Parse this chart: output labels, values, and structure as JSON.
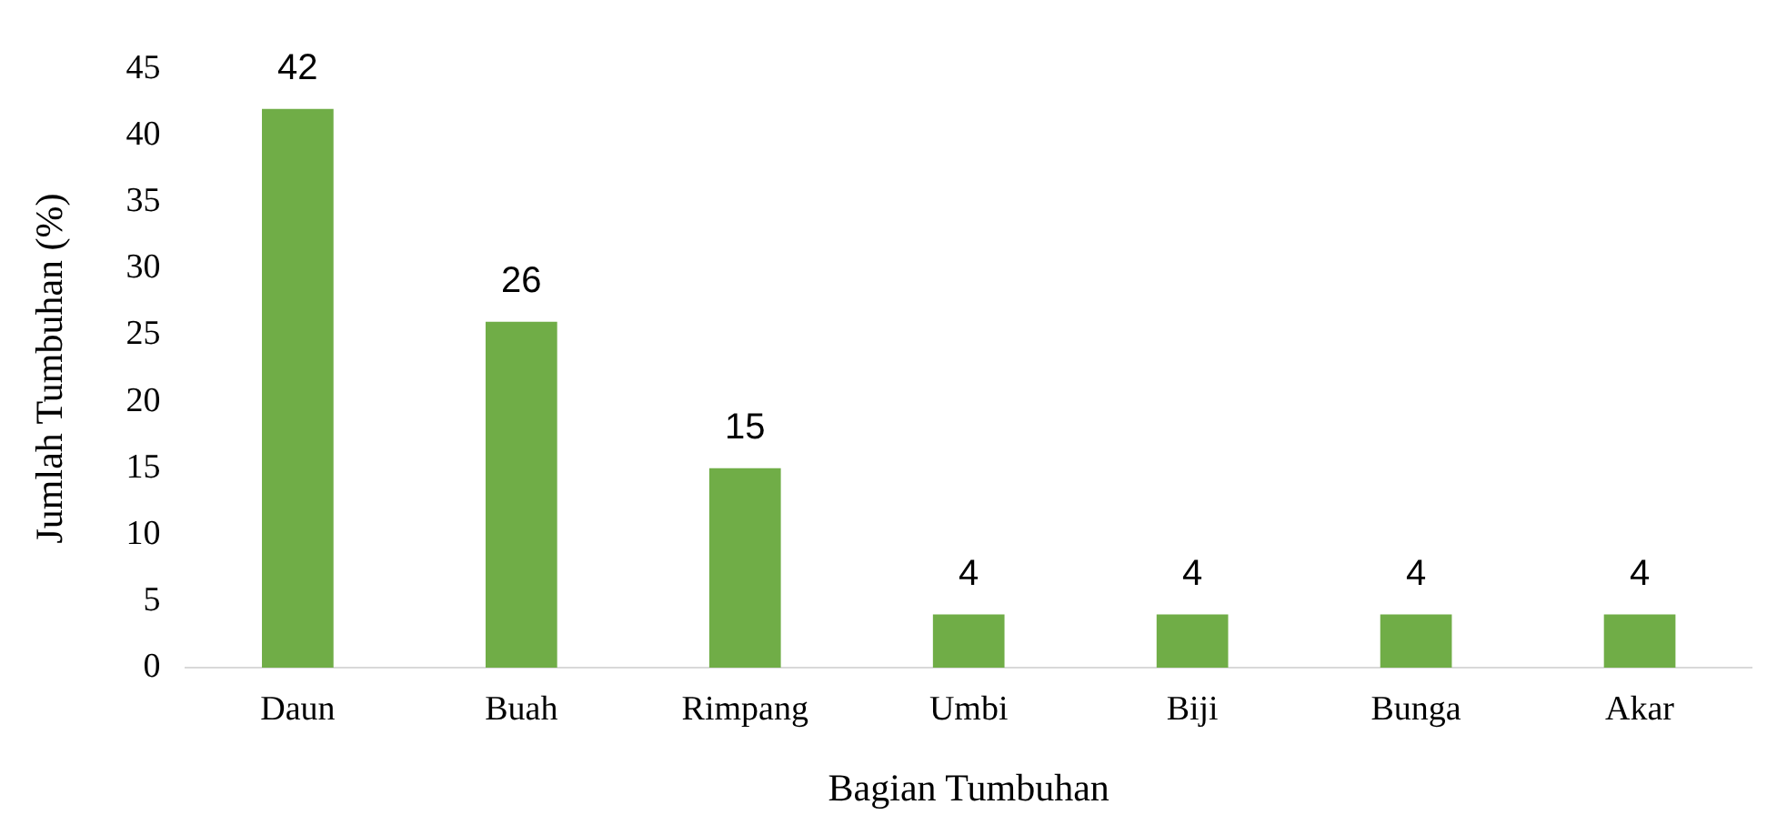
{
  "chart_data": {
    "type": "bar",
    "xlabel": "Bagian Tumbuhan",
    "ylabel": "Jumlah Tumbuhan (%)",
    "categories": [
      "Daun",
      "Buah",
      "Rimpang",
      "Umbi",
      "Biji",
      "Bunga",
      "Akar"
    ],
    "values": [
      42,
      26,
      15,
      4,
      4,
      4,
      4
    ],
    "color": "#70ad47",
    "ylim": [
      0,
      45
    ],
    "yticks": [
      0,
      5,
      10,
      15,
      20,
      25,
      30,
      35,
      40,
      45
    ],
    "grid": false,
    "legend": false,
    "data_labels": true
  }
}
